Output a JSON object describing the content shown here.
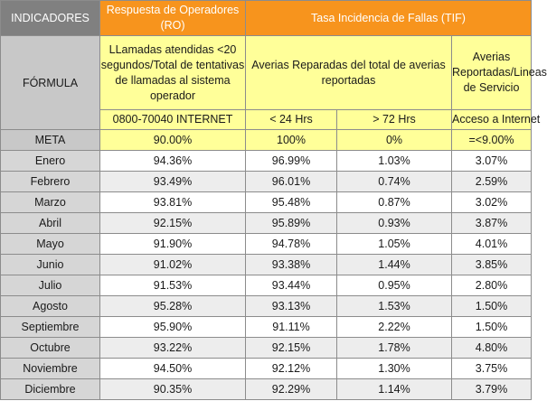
{
  "header": {
    "indicadores": "INDICADORES",
    "ro_title": "Respuesta de Operadores (RO)",
    "tif_title": "Tasa Incidencia de Fallas (TIF)",
    "formula_label": "FÓRMULA",
    "formula_ro": "LLamadas atendidas <20 segundos/Total de tentativas de llamadas al sistema operador",
    "formula_tif": "Averias Reparadas del total de averias reportadas",
    "formula_lineas": "Averias Reportadas/Lineas de Servicio",
    "sub_ro": "0800-70040 INTERNET",
    "sub_24": "< 24 Hrs",
    "sub_72": "> 72 Hrs",
    "sub_acceso": "Acceso a Internet"
  },
  "meta": {
    "label": "META",
    "ro": "90.00%",
    "h24": "100%",
    "h72": "0%",
    "acceso": "=<9.00%"
  },
  "rows": [
    {
      "month": "Enero",
      "ro": "94.36%",
      "h24": "96.99%",
      "h72": "1.03%",
      "acceso": "3.07%"
    },
    {
      "month": "Febrero",
      "ro": "93.49%",
      "h24": "96.01%",
      "h72": "0.74%",
      "acceso": "2.59%"
    },
    {
      "month": "Marzo",
      "ro": "93.81%",
      "h24": "95.48%",
      "h72": "0.87%",
      "acceso": "3.02%"
    },
    {
      "month": "Abril",
      "ro": "92.15%",
      "h24": "95.89%",
      "h72": "0.93%",
      "acceso": "3.87%"
    },
    {
      "month": "Mayo",
      "ro": "91.90%",
      "h24": "94.78%",
      "h72": "1.05%",
      "acceso": "4.01%"
    },
    {
      "month": "Junio",
      "ro": "91.02%",
      "h24": "93.38%",
      "h72": "1.44%",
      "acceso": "3.85%"
    },
    {
      "month": "Julio",
      "ro": "91.53%",
      "h24": "93.44%",
      "h72": "0.95%",
      "acceso": "2.80%"
    },
    {
      "month": "Agosto",
      "ro": "95.28%",
      "h24": "93.13%",
      "h72": "1.53%",
      "acceso": "1.50%"
    },
    {
      "month": "Septiembre",
      "ro": "95.90%",
      "h24": "91.11%",
      "h72": "2.22%",
      "acceso": "1.50%"
    },
    {
      "month": "Octubre",
      "ro": "93.22%",
      "h24": "92.15%",
      "h72": "1.78%",
      "acceso": "4.80%"
    },
    {
      "month": "Noviembre",
      "ro": "94.50%",
      "h24": "92.12%",
      "h72": "1.30%",
      "acceso": "3.75%"
    },
    {
      "month": "Diciembre",
      "ro": "90.35%",
      "h24": "92.29%",
      "h72": "1.14%",
      "acceso": "3.79%"
    }
  ],
  "colors": {
    "header_gray": "#808080",
    "header_orange": "#f7941d",
    "formula_gray": "#c8c8c8",
    "formula_yellow": "#ffff99",
    "month_gray": "#d6d6d6",
    "stripe": "#ededed"
  }
}
